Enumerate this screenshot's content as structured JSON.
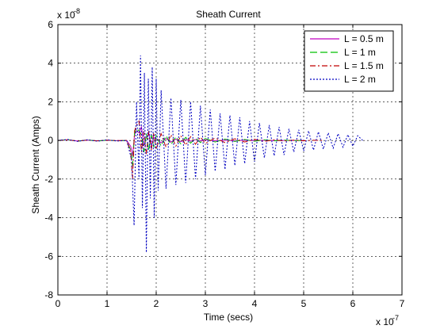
{
  "chart_data": {
    "type": "line",
    "title": "Sheath Current",
    "xlabel": "Time (secs)",
    "ylabel": "Sheath Current (Amps)",
    "x_exponent_base": "x 10",
    "x_exponent_power": "-7",
    "y_exponent_base": "x 10",
    "y_exponent_power": "-8",
    "xlim": [
      0,
      7
    ],
    "ylim": [
      -8,
      6
    ],
    "xticks": [
      0,
      1,
      2,
      3,
      4,
      5,
      6,
      7
    ],
    "yticks": [
      -8,
      -6,
      -4,
      -2,
      0,
      2,
      4,
      6
    ],
    "grid": true,
    "legend_position": "top-right",
    "series": [
      {
        "name": "L = 0.5 m",
        "color": "#c000c0",
        "dash": "solid",
        "x": [
          0,
          0.2,
          0.4,
          0.6,
          0.8,
          1.0,
          1.2,
          1.4,
          1.48,
          1.52,
          1.56,
          1.6,
          1.65,
          1.7,
          1.75,
          1.8,
          1.85,
          1.9,
          1.95,
          2.0,
          2.1,
          2.2,
          2.3,
          2.4,
          2.5,
          2.6,
          2.7,
          2.8,
          2.9,
          3.0,
          3.2,
          3.4,
          3.6,
          3.8,
          4.0,
          4.2,
          4.4,
          4.6,
          4.8,
          5.0
        ],
        "y": [
          0,
          0.03,
          -0.03,
          0.02,
          -0.02,
          0.01,
          -0.01,
          0.0,
          -0.3,
          -0.8,
          0.3,
          0.5,
          0.4,
          0.7,
          -0.3,
          0.2,
          0.35,
          -0.25,
          0.15,
          0.1,
          -0.12,
          0.1,
          -0.08,
          0.07,
          -0.06,
          0.05,
          -0.04,
          0.04,
          -0.03,
          0.03,
          -0.02,
          0.02,
          -0.02,
          0.01,
          -0.01,
          0.01,
          -0.01,
          0.0,
          0.0,
          0.0
        ]
      },
      {
        "name": "L = 1 m",
        "color": "#00c000",
        "dash": "long-dash",
        "x": [
          0,
          0.2,
          0.4,
          0.6,
          0.8,
          1.0,
          1.2,
          1.4,
          1.48,
          1.52,
          1.56,
          1.6,
          1.65,
          1.7,
          1.75,
          1.8,
          1.85,
          1.9,
          1.95,
          2.0,
          2.1,
          2.2,
          2.3,
          2.4,
          2.5,
          2.6,
          2.7,
          2.8,
          2.9,
          3.0,
          3.2,
          3.4,
          3.6,
          3.8,
          4.0,
          4.2,
          4.4,
          4.6,
          4.8,
          5.0
        ],
        "y": [
          0,
          0.04,
          -0.04,
          0.03,
          -0.03,
          0.02,
          -0.02,
          0.0,
          -0.5,
          -1.3,
          0.4,
          0.6,
          0.5,
          0.3,
          -0.6,
          0.35,
          -0.5,
          0.3,
          -0.35,
          0.25,
          -0.3,
          0.25,
          -0.22,
          0.2,
          -0.18,
          0.16,
          -0.14,
          0.13,
          -0.11,
          0.1,
          -0.08,
          0.07,
          -0.05,
          0.05,
          -0.04,
          0.03,
          -0.02,
          0.02,
          -0.01,
          0.0
        ]
      },
      {
        "name": "L = 1.5 m",
        "color": "#c00000",
        "dash": "dash-dot",
        "x": [
          0,
          0.2,
          0.4,
          0.6,
          0.8,
          1.0,
          1.2,
          1.4,
          1.48,
          1.52,
          1.56,
          1.6,
          1.65,
          1.7,
          1.75,
          1.8,
          1.85,
          1.9,
          1.95,
          2.0,
          2.1,
          2.2,
          2.3,
          2.4,
          2.5,
          2.6,
          2.7,
          2.8,
          2.9,
          3.0,
          3.2,
          3.4,
          3.6,
          3.8,
          4.0,
          4.2,
          4.4,
          4.6,
          4.8,
          5.0,
          5.2,
          5.4
        ],
        "y": [
          0,
          0.03,
          -0.03,
          0.02,
          -0.02,
          0.02,
          -0.01,
          0.0,
          -0.6,
          -2.0,
          0.5,
          0.8,
          1.0,
          -0.6,
          0.5,
          -0.7,
          0.5,
          -0.5,
          0.4,
          -0.45,
          0.35,
          -0.35,
          0.3,
          -0.3,
          0.25,
          -0.25,
          0.2,
          -0.2,
          0.18,
          -0.16,
          0.13,
          -0.11,
          0.09,
          -0.08,
          0.06,
          -0.05,
          0.04,
          -0.03,
          0.02,
          -0.02,
          0.01,
          0.0
        ]
      },
      {
        "name": "L = 2 m",
        "color": "#0000c0",
        "dash": "dotted",
        "x": [
          0,
          0.2,
          0.4,
          0.6,
          0.8,
          1.0,
          1.2,
          1.4,
          1.5,
          1.55,
          1.6,
          1.65,
          1.68,
          1.72,
          1.76,
          1.8,
          1.84,
          1.88,
          1.92,
          1.96,
          2.0,
          2.04,
          2.1,
          2.2,
          2.3,
          2.4,
          2.5,
          2.6,
          2.7,
          2.8,
          2.9,
          3.0,
          3.1,
          3.2,
          3.3,
          3.4,
          3.5,
          3.6,
          3.7,
          3.8,
          3.9,
          4.0,
          4.1,
          4.2,
          4.3,
          4.4,
          4.5,
          4.6,
          4.7,
          4.8,
          4.9,
          5.0,
          5.1,
          5.2,
          5.3,
          5.4,
          5.5,
          5.6,
          5.7,
          5.8,
          5.9,
          6.0,
          6.1,
          6.2
        ],
        "y": [
          0,
          0.05,
          -0.05,
          0.04,
          -0.04,
          0.03,
          -0.03,
          0.0,
          -1.0,
          -4.4,
          2.0,
          -2.0,
          4.4,
          -3.5,
          3.5,
          -5.8,
          3.2,
          -3.0,
          3.8,
          -4.0,
          3.2,
          -2.6,
          2.6,
          -2.5,
          2.2,
          -2.3,
          2.1,
          -2.2,
          2.0,
          -2.0,
          1.8,
          -1.8,
          1.6,
          -1.6,
          1.4,
          -1.5,
          1.3,
          -1.3,
          1.2,
          -1.2,
          1.0,
          -1.1,
          0.9,
          -0.9,
          0.8,
          -0.8,
          0.7,
          -0.75,
          0.6,
          -0.6,
          0.55,
          -0.55,
          0.5,
          -0.5,
          0.45,
          -0.45,
          0.4,
          -0.4,
          0.35,
          -0.35,
          0.3,
          -0.3,
          0.25,
          0.0
        ]
      }
    ]
  }
}
